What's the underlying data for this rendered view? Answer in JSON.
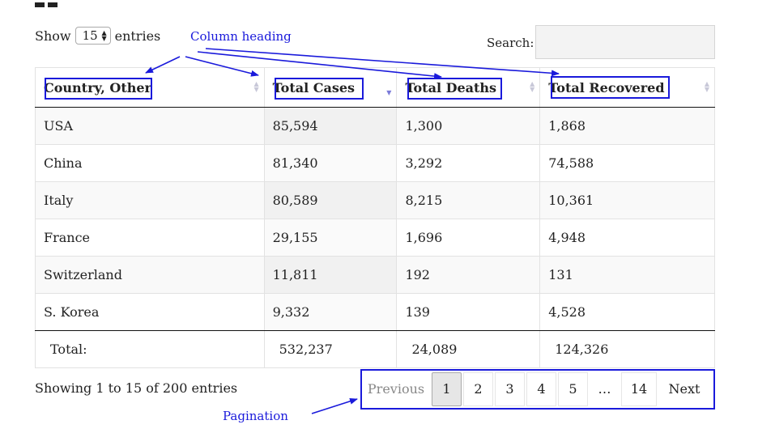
{
  "controls": {
    "show_label": "Show",
    "entries_label": "entries",
    "page_length": "15",
    "search_label": "Search:",
    "search_value": ""
  },
  "table": {
    "columns": [
      "Country, Other",
      "Total Cases",
      "Total Deaths",
      "Total Recovered"
    ],
    "rows": [
      [
        "USA",
        "85,594",
        "1,300",
        "1,868"
      ],
      [
        "China",
        "81,340",
        "3,292",
        "74,588"
      ],
      [
        "Italy",
        "80,589",
        "8,215",
        "10,361"
      ],
      [
        "France",
        "29,155",
        "1,696",
        "4,948"
      ],
      [
        "Switzerland",
        "11,811",
        "192",
        "131"
      ],
      [
        "S. Korea",
        "9,332",
        "139",
        "4,528"
      ]
    ],
    "footer": [
      "Total:",
      "532,237",
      "24,089",
      "124,326"
    ]
  },
  "info": "Showing 1 to 15 of 200 entries",
  "pagination": {
    "previous": "Previous",
    "pages": [
      "1",
      "2",
      "3",
      "4",
      "5"
    ],
    "ellipsis": "…",
    "last": "14",
    "next": "Next"
  },
  "annotations": {
    "column_heading": "Column heading",
    "pagination": "Pagination",
    "color": "#1a1adb"
  }
}
